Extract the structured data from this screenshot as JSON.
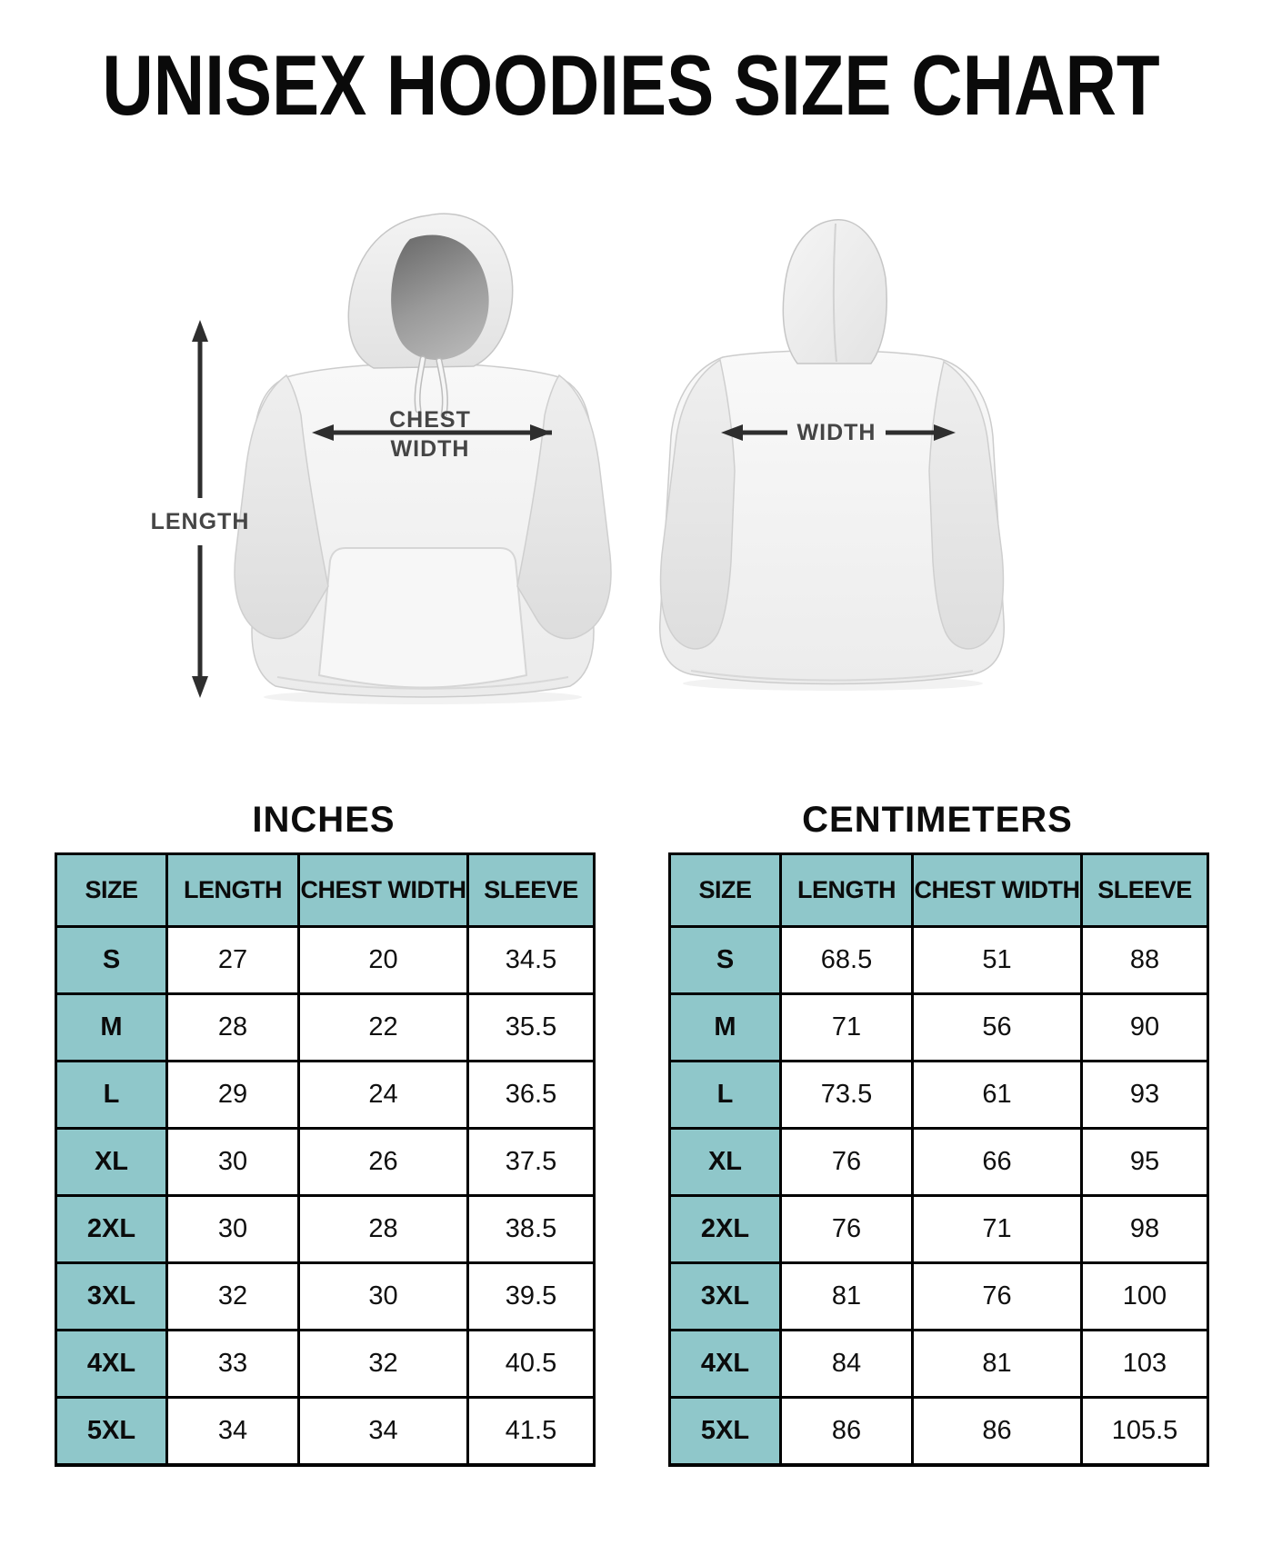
{
  "title": "UNISEX HOODIES SIZE CHART",
  "diagram": {
    "front_view": {
      "length_label": "LENGTH",
      "chest_width_label_line1": "CHEST",
      "chest_width_label_line2": "WIDTH"
    },
    "back_view": {
      "width_label": "WIDTH"
    }
  },
  "tables": [
    {
      "title": "INCHES",
      "headers": [
        "SIZE",
        "LENGTH",
        "CHEST WIDTH",
        "SLEEVE"
      ],
      "rows": [
        {
          "size": "S",
          "values": [
            "27",
            "20",
            "34.5"
          ]
        },
        {
          "size": "M",
          "values": [
            "28",
            "22",
            "35.5"
          ]
        },
        {
          "size": "L",
          "values": [
            "29",
            "24",
            "36.5"
          ]
        },
        {
          "size": "XL",
          "values": [
            "30",
            "26",
            "37.5"
          ]
        },
        {
          "size": "2XL",
          "values": [
            "30",
            "28",
            "38.5"
          ]
        },
        {
          "size": "3XL",
          "values": [
            "32",
            "30",
            "39.5"
          ]
        },
        {
          "size": "4XL",
          "values": [
            "33",
            "32",
            "40.5"
          ]
        },
        {
          "size": "5XL",
          "values": [
            "34",
            "34",
            "41.5"
          ]
        }
      ]
    },
    {
      "title": "CENTIMETERS",
      "headers": [
        "SIZE",
        "LENGTH",
        "CHEST WIDTH",
        "SLEEVE"
      ],
      "rows": [
        {
          "size": "S",
          "values": [
            "68.5",
            "51",
            "88"
          ]
        },
        {
          "size": "M",
          "values": [
            "71",
            "56",
            "90"
          ]
        },
        {
          "size": "L",
          "values": [
            "73.5",
            "61",
            "93"
          ]
        },
        {
          "size": "XL",
          "values": [
            "76",
            "66",
            "95"
          ]
        },
        {
          "size": "2XL",
          "values": [
            "76",
            "71",
            "98"
          ]
        },
        {
          "size": "3XL",
          "values": [
            "81",
            "76",
            "100"
          ]
        },
        {
          "size": "4XL",
          "values": [
            "84",
            "81",
            "103"
          ]
        },
        {
          "size": "5XL",
          "values": [
            "86",
            "86",
            "105.5"
          ]
        }
      ]
    }
  ],
  "colors": {
    "header_teal": "#8FC7CA",
    "table_border": "#000000",
    "arrow": "#2E2E2E",
    "label_gray": "#454545"
  }
}
